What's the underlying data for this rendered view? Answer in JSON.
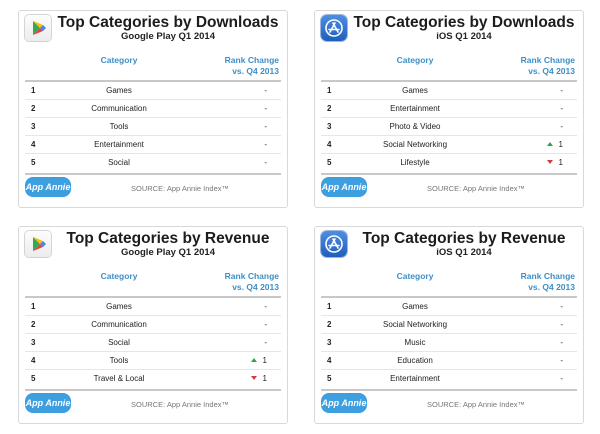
{
  "source_label": "SOURCE: App Annie Index™",
  "badge_label": "App Annie",
  "arrow_colors": {
    "up": "#2aa64a",
    "down": "#d63b3b"
  },
  "header_color": "#3d8fc7",
  "panels": [
    {
      "platform": "google-play",
      "logo_icon": "google-play-icon",
      "title": "Top Categories by Downloads",
      "subtitle": "Google Play Q1 2014",
      "col_category": "Category",
      "col_rank_line1": "Rank Change",
      "col_rank_line2": "vs. Q4 2013",
      "rows": [
        {
          "rank": "1",
          "category": "Games",
          "change": "-",
          "direction": "none"
        },
        {
          "rank": "2",
          "category": "Communication",
          "change": "-",
          "direction": "none"
        },
        {
          "rank": "3",
          "category": "Tools",
          "change": "-",
          "direction": "none"
        },
        {
          "rank": "4",
          "category": "Entertainment",
          "change": "-",
          "direction": "none"
        },
        {
          "rank": "5",
          "category": "Social",
          "change": "-",
          "direction": "none"
        }
      ]
    },
    {
      "platform": "ios",
      "logo_icon": "app-store-icon",
      "title": "Top Categories by Downloads",
      "subtitle": "iOS Q1 2014",
      "col_category": "Category",
      "col_rank_line1": "Rank Change",
      "col_rank_line2": "vs. Q4 2013",
      "rows": [
        {
          "rank": "1",
          "category": "Games",
          "change": "-",
          "direction": "none"
        },
        {
          "rank": "2",
          "category": "Entertainment",
          "change": "-",
          "direction": "none"
        },
        {
          "rank": "3",
          "category": "Photo & Video",
          "change": "-",
          "direction": "none"
        },
        {
          "rank": "4",
          "category": "Social Networking",
          "change": "1",
          "direction": "up"
        },
        {
          "rank": "5",
          "category": "Lifestyle",
          "change": "1",
          "direction": "down"
        }
      ]
    },
    {
      "platform": "google-play",
      "logo_icon": "google-play-icon",
      "title": "Top Categories by Revenue",
      "subtitle": "Google Play Q1 2014",
      "col_category": "Category",
      "col_rank_line1": "Rank Change",
      "col_rank_line2": "vs. Q4 2013",
      "rows": [
        {
          "rank": "1",
          "category": "Games",
          "change": "-",
          "direction": "none"
        },
        {
          "rank": "2",
          "category": "Communication",
          "change": "-",
          "direction": "none"
        },
        {
          "rank": "3",
          "category": "Social",
          "change": "-",
          "direction": "none"
        },
        {
          "rank": "4",
          "category": "Tools",
          "change": "1",
          "direction": "up"
        },
        {
          "rank": "5",
          "category": "Travel & Local",
          "change": "1",
          "direction": "down"
        }
      ]
    },
    {
      "platform": "ios",
      "logo_icon": "app-store-icon",
      "title": "Top Categories by Revenue",
      "subtitle": "iOS Q1 2014",
      "col_category": "Category",
      "col_rank_line1": "Rank Change",
      "col_rank_line2": "vs. Q4 2013",
      "rows": [
        {
          "rank": "1",
          "category": "Games",
          "change": "-",
          "direction": "none"
        },
        {
          "rank": "2",
          "category": "Social Networking",
          "change": "-",
          "direction": "none"
        },
        {
          "rank": "3",
          "category": "Music",
          "change": "-",
          "direction": "none"
        },
        {
          "rank": "4",
          "category": "Education",
          "change": "-",
          "direction": "none"
        },
        {
          "rank": "5",
          "category": "Entertainment",
          "change": "-",
          "direction": "none"
        }
      ]
    }
  ]
}
